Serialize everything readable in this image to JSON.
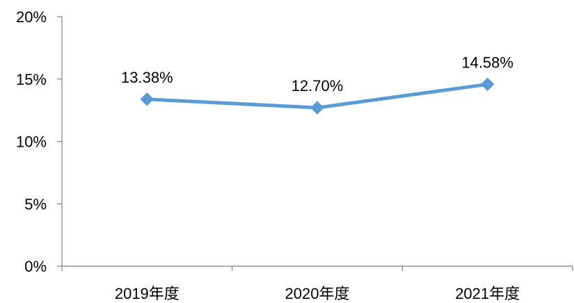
{
  "chart_data": {
    "type": "line",
    "categories": [
      "2019年度",
      "2020年度",
      "2021年度"
    ],
    "series": [
      {
        "values": [
          13.38,
          12.7,
          14.58
        ],
        "labels": [
          "13.38%",
          "12.70%",
          "14.58%"
        ],
        "color": "#5B9BD5"
      }
    ],
    "ylim": [
      0,
      20
    ],
    "yticks": [
      0,
      5,
      10,
      15,
      20
    ],
    "ytick_labels": [
      "0%",
      "5%",
      "10%",
      "15%",
      "20%"
    ],
    "grid": false,
    "legend": "none",
    "marker": "diamond",
    "axis_color": "#808080"
  }
}
